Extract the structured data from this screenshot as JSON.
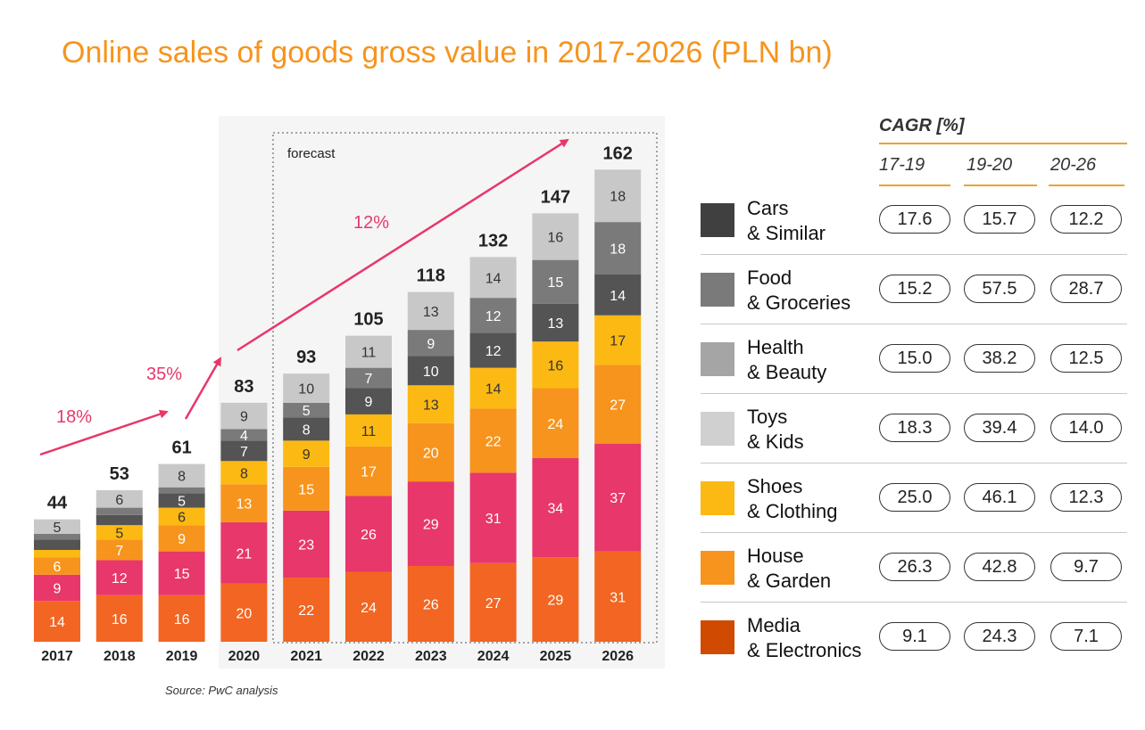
{
  "title": "Online sales of goods gross value in 2017-2026 (PLN bn)",
  "source": "Source: PwC analysis",
  "forecast_label": "forecast",
  "growth_labels": [
    "18%",
    "35%",
    "12%"
  ],
  "chart_data": {
    "type": "bar",
    "stacked": true,
    "title": "Online sales of goods gross value in 2017-2026 (PLN bn)",
    "categories": [
      "2017",
      "2018",
      "2019",
      "2020",
      "2021",
      "2022",
      "2023",
      "2024",
      "2025",
      "2026"
    ],
    "totals": [
      44,
      53,
      61,
      83,
      93,
      105,
      118,
      132,
      147,
      162
    ],
    "series": [
      {
        "name": "Media & Electronics",
        "color": "#f26522",
        "values": [
          14,
          16,
          16,
          20,
          22,
          24,
          26,
          27,
          29,
          31
        ],
        "labels": [
          "14",
          "16",
          "16",
          "20",
          "22",
          "24",
          "26",
          "27",
          "29",
          "31"
        ]
      },
      {
        "name": "House & Garden",
        "color": "#e8376a",
        "values": [
          9,
          12,
          15,
          21,
          23,
          26,
          29,
          31,
          34,
          37
        ],
        "labels": [
          "9",
          "12",
          "15",
          "21",
          "23",
          "26",
          "29",
          "31",
          "34",
          "37"
        ]
      },
      {
        "name": "Shoes & Clothing",
        "color": "#f7941d",
        "values": [
          6,
          7,
          9,
          13,
          15,
          17,
          20,
          22,
          24,
          27
        ],
        "labels": [
          "6",
          "7",
          "9",
          "13",
          "15",
          "17",
          "20",
          "22",
          "24",
          "27"
        ]
      },
      {
        "name": "Toys & Kids",
        "color": "#fdb913",
        "values": [
          2.5,
          5,
          6,
          8,
          9,
          11,
          13,
          14,
          16,
          17
        ],
        "labels": [
          "",
          "5",
          "6",
          "8",
          "9",
          "11",
          "13",
          "14",
          "16",
          "17"
        ]
      },
      {
        "name": "Cars & Similar",
        "color": "#545454",
        "values": [
          3.5,
          3.5,
          5,
          7,
          8,
          9,
          10,
          12,
          13,
          14
        ],
        "labels": [
          "",
          "",
          "5",
          "7",
          "8",
          "9",
          "10",
          "12",
          "13",
          "14"
        ]
      },
      {
        "name": "Food & Groceries",
        "color": "#7a7a7a",
        "values": [
          2,
          2.5,
          2,
          4,
          5,
          7,
          9,
          12,
          15,
          18
        ],
        "labels": [
          "",
          "",
          "",
          "4",
          "5",
          "7",
          "9",
          "12",
          "15",
          "18"
        ]
      },
      {
        "name": "Health & Beauty",
        "color": "#c8c8c8",
        "values": [
          5,
          6,
          8,
          9,
          10,
          11,
          13,
          14,
          16,
          18
        ],
        "labels": [
          "5",
          "6",
          "8",
          "9",
          "10",
          "11",
          "13",
          "14",
          "16",
          "18"
        ]
      }
    ]
  },
  "cagr": {
    "title": "CAGR [%]",
    "periods": [
      "17-19",
      "19-20",
      "20-26"
    ],
    "rows": [
      {
        "line1": "Cars",
        "line2": "& Similar",
        "color": "#404040",
        "values": [
          "17.6",
          "15.7",
          "12.2"
        ]
      },
      {
        "line1": "Food",
        "line2": "& Groceries",
        "color": "#7a7a7a",
        "values": [
          "15.2",
          "57.5",
          "28.7"
        ]
      },
      {
        "line1": "Health",
        "line2": "& Beauty",
        "color": "#a5a5a5",
        "values": [
          "15.0",
          "38.2",
          "12.5"
        ]
      },
      {
        "line1": "Toys",
        "line2": "& Kids",
        "color": "#d0d0d0",
        "values": [
          "18.3",
          "39.4",
          "14.0"
        ]
      },
      {
        "line1": "Shoes",
        "line2": "& Clothing",
        "color": "#fdb913",
        "values": [
          "25.0",
          "46.1",
          "12.3"
        ]
      },
      {
        "line1": "House",
        "line2": "& Garden",
        "color": "#f7941d",
        "values": [
          "26.3",
          "42.8",
          "9.7"
        ]
      },
      {
        "line1": "Media",
        "line2": "& Electronics",
        "color": "#d04a02",
        "values": [
          "9.1",
          "24.3",
          "7.1"
        ]
      }
    ]
  }
}
